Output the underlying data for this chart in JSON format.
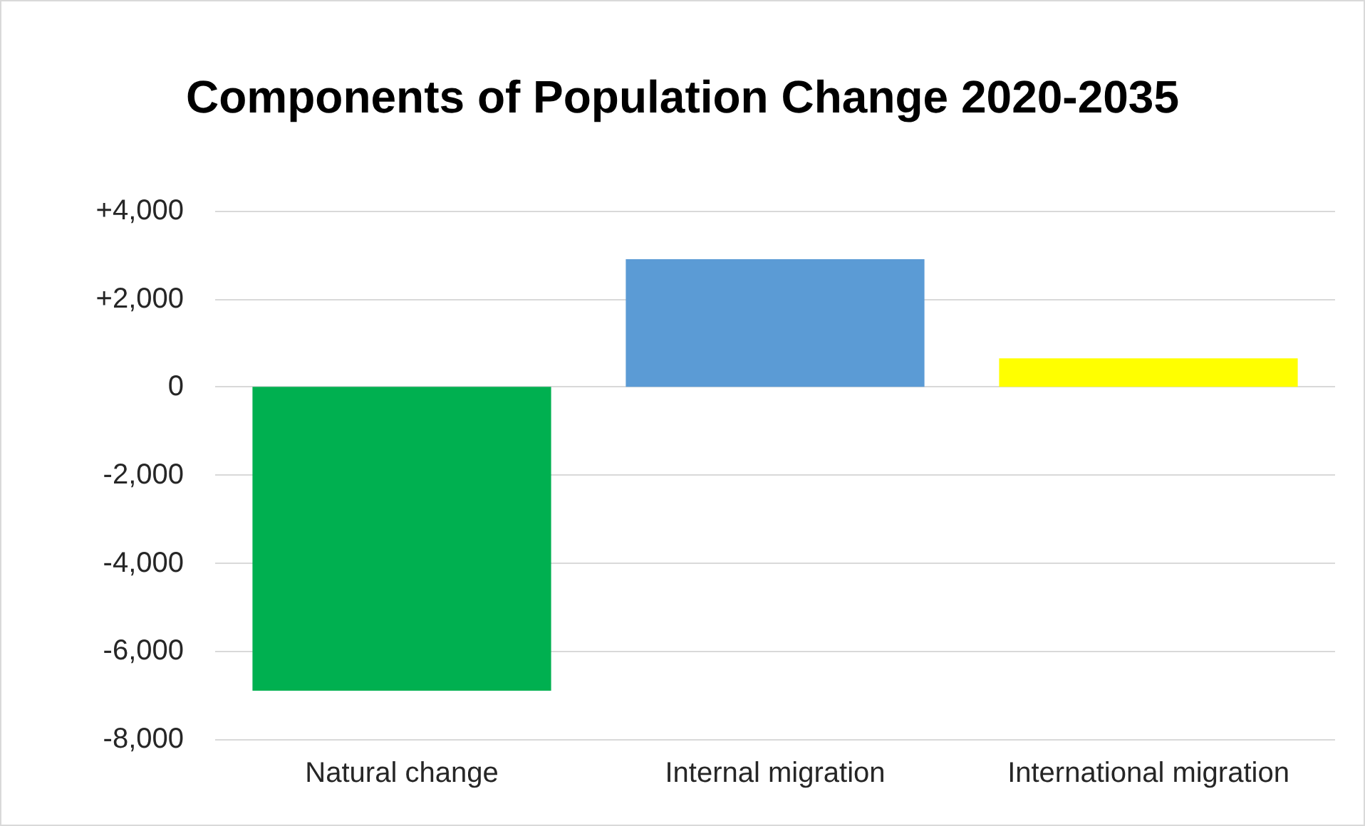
{
  "chart_data": {
    "type": "bar",
    "title": "Components of Population Change 2020-2035",
    "categories": [
      "Natural change",
      "Internal migration",
      "International migration"
    ],
    "values": [
      -6900,
      2900,
      650
    ],
    "colors": [
      "#00b050",
      "#5b9bd5",
      "#ffff00"
    ],
    "ylim": [
      -8000,
      4000
    ],
    "yticks": [
      {
        "value": -8000,
        "label": "-8,000"
      },
      {
        "value": -6000,
        "label": "-6,000"
      },
      {
        "value": -4000,
        "label": "-4,000"
      },
      {
        "value": -2000,
        "label": "-2,000"
      },
      0,
      {
        "value": 2000,
        "label": "+2,000"
      },
      {
        "value": 4000,
        "label": "+4,000"
      }
    ],
    "grid": "y"
  }
}
